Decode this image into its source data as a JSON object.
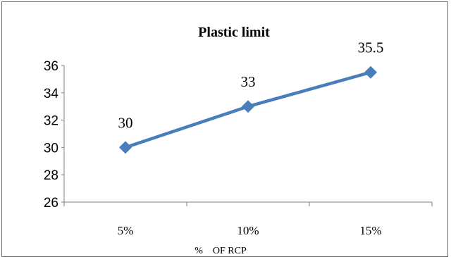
{
  "chart_data": {
    "type": "line",
    "title": "Plastic limit",
    "xlabel": "%    OF RCP",
    "ylabel": "",
    "categories": [
      "5%",
      "10%",
      "15%"
    ],
    "series": [
      {
        "values": [
          30,
          33,
          35.5
        ],
        "data_labels": [
          "30",
          "33",
          "35.5"
        ],
        "color": "#4a7ebb"
      }
    ],
    "ylim": [
      26,
      36
    ],
    "yticks": [
      "26",
      "28",
      "30",
      "32",
      "34",
      "36"
    ],
    "grid": false,
    "legend": "none"
  }
}
